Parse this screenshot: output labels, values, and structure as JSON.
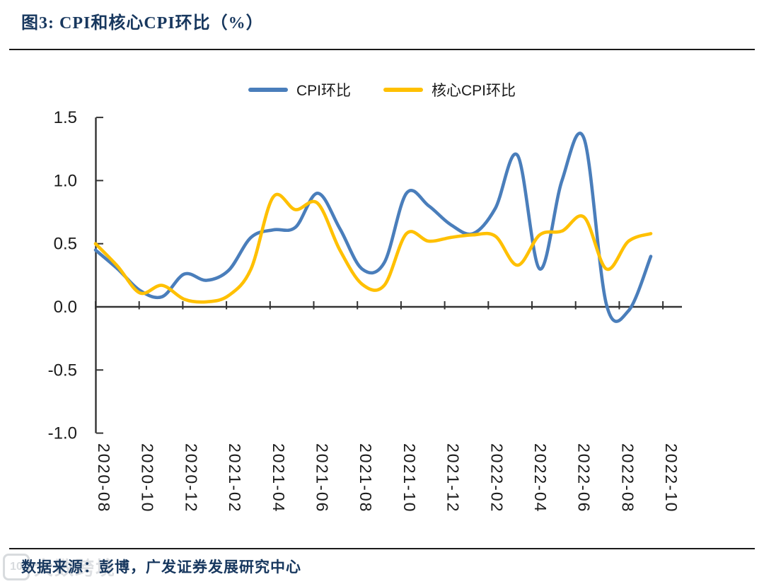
{
  "figure": {
    "title": "图3: CPI和核心CPI环比（%）",
    "source": "数据来源：彭博，广发证券发展研究中心"
  },
  "watermark": {
    "logo": "10",
    "text": "大数跨境"
  },
  "legend": {
    "items": [
      {
        "label": "CPI环比",
        "color": "#4A7EBB"
      },
      {
        "label": "核心CPI环比",
        "color": "#FFC000"
      }
    ]
  },
  "chart_data": {
    "type": "line",
    "title": "CPI和核心CPI环比（%）",
    "x": [
      "2020-08",
      "2020-09",
      "2020-10",
      "2020-11",
      "2020-12",
      "2021-01",
      "2021-02",
      "2021-03",
      "2021-04",
      "2021-05",
      "2021-06",
      "2021-07",
      "2021-08",
      "2021-09",
      "2021-10",
      "2021-11",
      "2021-12",
      "2022-01",
      "2022-02",
      "2022-03",
      "2022-04",
      "2022-05",
      "2022-06",
      "2022-07",
      "2022-08",
      "2022-09"
    ],
    "x_tick_labels": [
      "2020-08",
      "2020-10",
      "2020-12",
      "2021-02",
      "2021-04",
      "2021-06",
      "2021-08",
      "2021-10",
      "2021-12",
      "2022-02",
      "2022-04",
      "2022-06",
      "2022-08",
      "2022-10"
    ],
    "series": [
      {
        "name": "CPI环比",
        "color": "#4A7EBB",
        "values": [
          0.45,
          0.3,
          0.13,
          0.08,
          0.26,
          0.21,
          0.29,
          0.55,
          0.61,
          0.63,
          0.9,
          0.62,
          0.3,
          0.35,
          0.9,
          0.8,
          0.65,
          0.58,
          0.78,
          1.2,
          0.3,
          1.0,
          1.33,
          0.02,
          -0.03,
          0.4
        ]
      },
      {
        "name": "核心CPI环比",
        "color": "#FFC000",
        "values": [
          0.5,
          0.32,
          0.11,
          0.17,
          0.06,
          0.04,
          0.09,
          0.3,
          0.87,
          0.77,
          0.82,
          0.45,
          0.18,
          0.17,
          0.58,
          0.52,
          0.55,
          0.57,
          0.56,
          0.33,
          0.57,
          0.6,
          0.71,
          0.3,
          0.52,
          0.58
        ]
      }
    ],
    "ylim": [
      -1.0,
      1.5
    ],
    "yticks": [
      1.5,
      1.0,
      0.5,
      0.0,
      -0.5,
      -1.0
    ],
    "grid": false,
    "smooth": true,
    "legend_position": "top-center"
  }
}
